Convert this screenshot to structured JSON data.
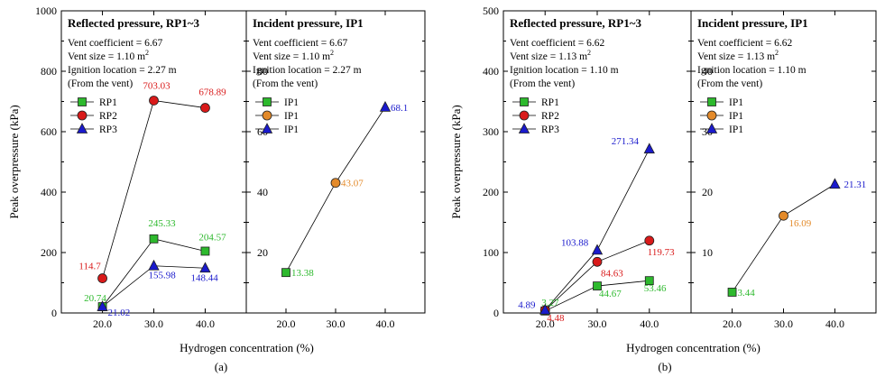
{
  "chart_data": [
    {
      "type": "line",
      "figure_label": "(a)",
      "ylabel": "Peak overpressure (kPa)",
      "xlabel": "Hydrogen concentration (%)",
      "x_ticks": [
        "20.0",
        "30.0",
        "40.0"
      ],
      "panels": [
        {
          "title": "Reflected pressure, RP1~3",
          "annotations": [
            "Vent coefficient = 6.67",
            "Vent size = 1.10 m",
            "Ignition location = 2.27 m",
            "(From the vent)"
          ],
          "unit_sup": "2",
          "ylim": [
            0,
            1000
          ],
          "y_ticks": [
            "0",
            "200",
            "400",
            "600",
            "800",
            "1000"
          ],
          "series": [
            {
              "name": "RP1",
              "marker": "square",
              "color": "#2db92d",
              "x": [
                20,
                30,
                40
              ],
              "values": [
                20.74,
                245.33,
                204.57
              ],
              "labels": [
                "20.74",
                "245.33",
                "204.57"
              ]
            },
            {
              "name": "RP2",
              "marker": "circle",
              "color": "#d91a1a",
              "x": [
                20,
                30,
                40
              ],
              "values": [
                114.7,
                703.03,
                678.89
              ],
              "labels": [
                "114.7",
                "703.03",
                "678.89"
              ]
            },
            {
              "name": "RP3",
              "marker": "triangle",
              "color": "#1a1acc",
              "x": [
                20,
                30,
                40
              ],
              "values": [
                21.02,
                155.98,
                148.44
              ],
              "labels": [
                "21.02",
                "155.98",
                "148.44"
              ]
            }
          ]
        },
        {
          "title": "Incident pressure, IP1",
          "annotations": [
            "Vent coefficient = 6.67",
            "Vent size = 1.10 m",
            "Ignition location = 2.27 m",
            "(From the vent)"
          ],
          "unit_sup": "2",
          "ylim": [
            0,
            100
          ],
          "y_ticks": [
            "20",
            "40",
            "60",
            "80"
          ],
          "series": [
            {
              "name": "IP1",
              "marker": "square",
              "color": "#2db92d",
              "x": [
                20
              ],
              "values": [
                13.38
              ],
              "labels": [
                "13.38"
              ]
            },
            {
              "name": "IP1",
              "marker": "circle",
              "color": "#e38a2a",
              "x": [
                30
              ],
              "values": [
                43.07
              ],
              "labels": [
                "43.07"
              ]
            },
            {
              "name": "IP1",
              "marker": "triangle",
              "color": "#1a1acc",
              "x": [
                40
              ],
              "values": [
                68.1
              ],
              "labels": [
                "68.1"
              ]
            }
          ],
          "connect_all": true
        }
      ]
    },
    {
      "type": "line",
      "figure_label": "(b)",
      "ylabel": "Peak overpressure (kPa)",
      "xlabel": "Hydrogen concentration (%)",
      "x_ticks": [
        "20.0",
        "30.0",
        "40.0"
      ],
      "panels": [
        {
          "title": "Reflected pressure, RP1~3",
          "annotations": [
            "Vent coefficient = 6.62",
            "Vent size = 1.13 m",
            "Ignition location = 1.10 m",
            "(From the vent)"
          ],
          "unit_sup": "2",
          "ylim": [
            0,
            500
          ],
          "y_ticks": [
            "0",
            "100",
            "200",
            "300",
            "400",
            "500"
          ],
          "series": [
            {
              "name": "RP1",
              "marker": "square",
              "color": "#2db92d",
              "x": [
                20,
                30,
                40
              ],
              "values": [
                3.27,
                44.67,
                53.46
              ],
              "labels": [
                "3.27",
                "44.67",
                "53.46"
              ]
            },
            {
              "name": "RP2",
              "marker": "circle",
              "color": "#d91a1a",
              "x": [
                20,
                30,
                40
              ],
              "values": [
                4.48,
                84.63,
                119.73
              ],
              "labels": [
                "4.48",
                "84.63",
                "119.73"
              ]
            },
            {
              "name": "RP3",
              "marker": "triangle",
              "color": "#1a1acc",
              "x": [
                20,
                30,
                40
              ],
              "values": [
                4.89,
                103.88,
                271.34
              ],
              "labels": [
                "4.89",
                "103.88",
                "271.34"
              ]
            }
          ]
        },
        {
          "title": "Incident pressure, IP1",
          "annotations": [
            "Vent coefficient = 6.62",
            "Vent size = 1.13 m",
            "Ignition location = 1.10 m",
            "(From the vent)"
          ],
          "unit_sup": "2",
          "ylim": [
            0,
            50
          ],
          "y_ticks": [
            "10",
            "20",
            "30",
            "40"
          ],
          "series": [
            {
              "name": "IP1",
              "marker": "square",
              "color": "#2db92d",
              "x": [
                20
              ],
              "values": [
                3.44
              ],
              "labels": [
                "3.44"
              ]
            },
            {
              "name": "IP1",
              "marker": "circle",
              "color": "#e38a2a",
              "x": [
                30
              ],
              "values": [
                16.09
              ],
              "labels": [
                "16.09"
              ]
            },
            {
              "name": "IP1",
              "marker": "triangle",
              "color": "#1a1acc",
              "x": [
                40
              ],
              "values": [
                21.31
              ],
              "labels": [
                "21.31"
              ]
            }
          ],
          "connect_all": true
        }
      ]
    }
  ]
}
